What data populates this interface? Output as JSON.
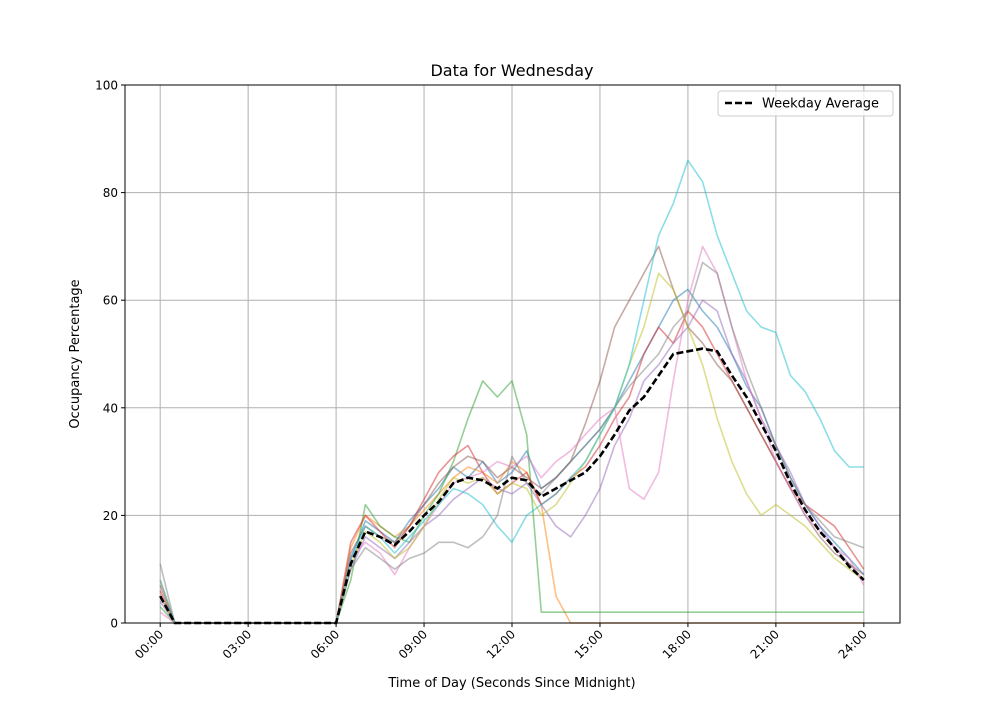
{
  "chart_data": {
    "type": "line",
    "title": "Data for Wednesday",
    "xlabel": "Time of Day (Seconds Since Midnight)",
    "ylabel": "Occupancy Percentage",
    "xlim": [
      "-01:12",
      "25:14"
    ],
    "ylim": [
      0,
      100
    ],
    "grid": true,
    "legend_position": "top-right",
    "x_ticks": [
      "00:00",
      "03:00",
      "06:00",
      "09:00",
      "12:00",
      "15:00",
      "18:00",
      "21:00",
      "24:00"
    ],
    "y_ticks": [
      0,
      20,
      40,
      60,
      80,
      100
    ],
    "x": [
      "00:00",
      "00:30",
      "01:00",
      "01:30",
      "02:00",
      "02:30",
      "03:00",
      "03:30",
      "04:00",
      "04:30",
      "05:00",
      "05:30",
      "06:00",
      "06:30",
      "07:00",
      "07:30",
      "08:00",
      "08:30",
      "09:00",
      "09:30",
      "10:00",
      "10:30",
      "11:00",
      "11:30",
      "12:00",
      "12:30",
      "13:00",
      "13:30",
      "14:00",
      "14:30",
      "15:00",
      "15:30",
      "16:00",
      "16:30",
      "17:00",
      "17:30",
      "18:00",
      "18:30",
      "19:00",
      "19:30",
      "20:00",
      "20:30",
      "21:00",
      "21:30",
      "22:00",
      "22:30",
      "23:00",
      "23:30",
      "24:00"
    ],
    "average": {
      "name": "Weekday Average",
      "color": "#000000",
      "style": "dashed",
      "values": [
        5,
        0,
        0,
        0,
        0,
        0,
        0,
        0,
        0,
        0,
        0,
        0,
        0,
        11,
        17,
        16,
        14.5,
        17,
        20,
        22.5,
        26,
        27,
        26.5,
        25,
        27,
        26.5,
        23.5,
        25,
        26.5,
        28,
        31,
        35,
        39.5,
        42,
        46,
        50,
        50.5,
        51,
        50.5,
        46,
        42,
        37,
        32,
        26,
        21,
        17,
        14,
        10.5,
        8
      ]
    },
    "series": [
      {
        "color": "#1f77b4",
        "values": [
          5,
          0,
          0,
          0,
          0,
          0,
          0,
          0,
          0,
          0,
          0,
          0,
          0,
          12,
          19,
          17,
          15,
          19,
          22,
          25,
          29,
          27,
          30,
          26,
          28,
          32,
          25,
          27,
          30,
          33,
          36,
          40,
          45,
          50,
          55,
          60,
          62,
          58,
          55,
          50,
          44,
          40,
          33,
          27,
          22,
          18,
          15,
          12,
          9
        ]
      },
      {
        "color": "#ff7f0e",
        "values": [
          8,
          0,
          0,
          0,
          0,
          0,
          0,
          0,
          0,
          0,
          0,
          0,
          0,
          14,
          20,
          18,
          16,
          18,
          21,
          24,
          27,
          29,
          28,
          26,
          30,
          28,
          22,
          5,
          0,
          0,
          0,
          0,
          0,
          0,
          0,
          0,
          0,
          0,
          0,
          0,
          0,
          0,
          0,
          0,
          0,
          0,
          0,
          0,
          0
        ]
      },
      {
        "color": "#2ca02c",
        "values": [
          3,
          0,
          0,
          0,
          0,
          0,
          0,
          0,
          0,
          0,
          0,
          0,
          0,
          8,
          22,
          18,
          16,
          15,
          20,
          24,
          30,
          38,
          45,
          42,
          45,
          35,
          2,
          2,
          2,
          2,
          2,
          2,
          2,
          2,
          2,
          2,
          2,
          2,
          2,
          2,
          2,
          2,
          2,
          2,
          2,
          2,
          2,
          2,
          2
        ]
      },
      {
        "color": "#d62728",
        "values": [
          6,
          0,
          0,
          0,
          0,
          0,
          0,
          0,
          0,
          0,
          0,
          0,
          0,
          15,
          20,
          17,
          14,
          18,
          23,
          28,
          31,
          33,
          28,
          24,
          26,
          28,
          22,
          24,
          27,
          29,
          33,
          38,
          42,
          50,
          55,
          52,
          58,
          55,
          50,
          45,
          40,
          35,
          30,
          25,
          22,
          20,
          18,
          14,
          10
        ]
      },
      {
        "color": "#9467bd",
        "values": [
          4,
          0,
          0,
          0,
          0,
          0,
          0,
          0,
          0,
          0,
          0,
          0,
          0,
          10,
          16,
          14,
          12,
          15,
          18,
          20,
          23,
          25,
          27,
          25,
          24,
          26,
          22,
          18,
          16,
          20,
          25,
          33,
          38,
          45,
          48,
          52,
          55,
          60,
          58,
          50,
          45,
          38,
          33,
          28,
          22,
          18,
          14,
          11,
          8
        ]
      },
      {
        "color": "#8c564b",
        "values": [
          7,
          0,
          0,
          0,
          0,
          0,
          0,
          0,
          0,
          0,
          0,
          0,
          0,
          13,
          18,
          16,
          15,
          18,
          22,
          26,
          29,
          31,
          30,
          27,
          29,
          27,
          25,
          27,
          30,
          37,
          45,
          55,
          60,
          65,
          70,
          62,
          55,
          52,
          48,
          45,
          40,
          35,
          30,
          25,
          20,
          16,
          13,
          11,
          9
        ]
      },
      {
        "color": "#e377c2",
        "values": [
          2,
          0,
          0,
          0,
          0,
          0,
          0,
          0,
          0,
          0,
          0,
          0,
          0,
          12,
          15,
          13,
          9,
          14,
          18,
          22,
          26,
          27,
          28,
          30,
          29,
          31,
          27,
          30,
          32,
          35,
          38,
          40,
          25,
          23,
          28,
          45,
          60,
          70,
          65,
          55,
          45,
          38,
          30,
          25,
          20,
          17,
          14,
          12,
          7
        ]
      },
      {
        "color": "#7f7f7f",
        "values": [
          11,
          0,
          0,
          0,
          0,
          0,
          0,
          0,
          0,
          0,
          0,
          0,
          0,
          10,
          14,
          12,
          10,
          12,
          13,
          15,
          15,
          14,
          16,
          20,
          31,
          26,
          24,
          27,
          30,
          33,
          36,
          40,
          44,
          47,
          50,
          55,
          58,
          67,
          65,
          55,
          47,
          40,
          33,
          27,
          22,
          19,
          16,
          15,
          14
        ]
      },
      {
        "color": "#bcbd22",
        "values": [
          5,
          0,
          0,
          0,
          0,
          0,
          0,
          0,
          0,
          0,
          0,
          0,
          0,
          11,
          17,
          15,
          12,
          14,
          18,
          23,
          27,
          26,
          27,
          24,
          26,
          25,
          20,
          22,
          26,
          30,
          35,
          40,
          48,
          55,
          65,
          62,
          55,
          48,
          38,
          30,
          24,
          20,
          22,
          20,
          18,
          15,
          12,
          10,
          8
        ]
      },
      {
        "color": "#17becf",
        "values": [
          8,
          0,
          0,
          0,
          0,
          0,
          0,
          0,
          0,
          0,
          0,
          0,
          0,
          12,
          18,
          16,
          13,
          16,
          19,
          22,
          25,
          24,
          22,
          18,
          15,
          20,
          22,
          24,
          27,
          30,
          35,
          40,
          48,
          60,
          72,
          78,
          86,
          82,
          72,
          65,
          58,
          55,
          54,
          46,
          43,
          38,
          32,
          29,
          29
        ]
      }
    ]
  }
}
